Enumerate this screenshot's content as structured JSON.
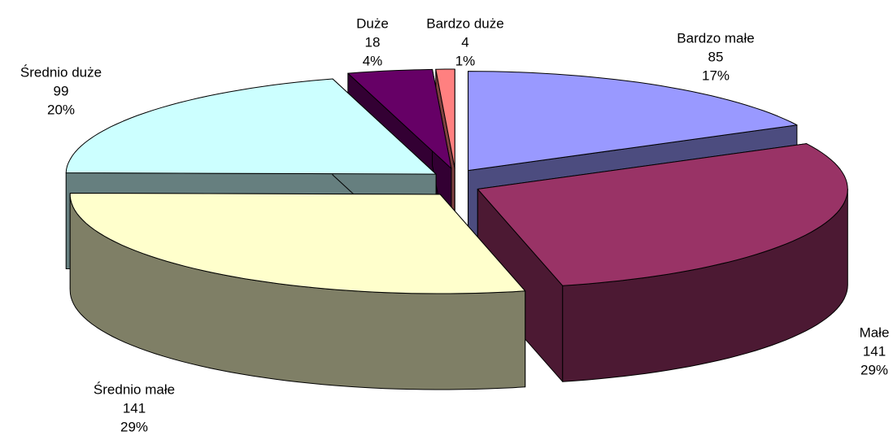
{
  "chart_data": {
    "type": "pie3d",
    "categories": [
      "Bardzo małe",
      "Małe",
      "Średnio małe",
      "Średnio duże",
      "Duże",
      "Bardzo duże"
    ],
    "values": [
      85,
      141,
      141,
      99,
      18,
      4
    ],
    "percent_labels": [
      "17%",
      "29%",
      "29%",
      "20%",
      "4%",
      "1%"
    ],
    "colors": [
      "#9999ff",
      "#993366",
      "#ffffcc",
      "#ccffff",
      "#660066",
      "#ff8080"
    ]
  }
}
